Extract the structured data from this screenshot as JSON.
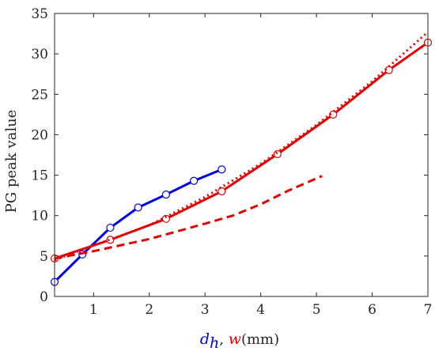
{
  "chart_data": {
    "type": "line",
    "xlim": [
      0.3,
      7
    ],
    "ylim": [
      0,
      35
    ],
    "xticks": [
      1,
      2,
      3,
      4,
      5,
      6,
      7
    ],
    "yticks": [
      0,
      5,
      10,
      15,
      20,
      25,
      30,
      35
    ],
    "xtick_labels": [
      "1",
      "2",
      "3",
      "4",
      "5",
      "6",
      "7"
    ],
    "ytick_labels": [
      "0",
      "5",
      "10",
      "15",
      "20",
      "25",
      "30",
      "35"
    ],
    "ylabel": "PG peak value",
    "xlabel": {
      "var1": "d",
      "var1_sub": "h",
      "sep": ", ",
      "var2": "w",
      "unit": "(mm)"
    },
    "grid": false,
    "box": true,
    "colors": {
      "blue": "#0000e6",
      "red": "#e60000",
      "axis": "#262626"
    },
    "series": [
      {
        "color": "blue",
        "style": "solid",
        "markers": "circle",
        "x": [
          0.3,
          0.8,
          1.3,
          1.8,
          2.3,
          2.8,
          3.3
        ],
        "y": [
          1.8,
          5.2,
          8.5,
          11.0,
          12.6,
          14.3,
          15.7
        ]
      },
      {
        "color": "red",
        "style": "solid",
        "markers": "circle",
        "x": [
          0.3,
          1.3,
          2.3,
          3.3,
          4.3,
          5.3,
          6.3,
          7.0
        ],
        "y": [
          4.7,
          7.0,
          9.6,
          13.0,
          17.6,
          22.5,
          28.0,
          31.4
        ]
      },
      {
        "color": "red",
        "style": "dotted",
        "markers": "none",
        "x": [
          0.3,
          1.0,
          2.0,
          3.0,
          4.0,
          5.0,
          6.0,
          7.0
        ],
        "y": [
          4.5,
          6.3,
          8.8,
          12.3,
          16.4,
          21.2,
          26.6,
          32.7
        ]
      },
      {
        "color": "red",
        "style": "dashed",
        "markers": "none",
        "x": [
          0.3,
          1.0,
          2.0,
          3.0,
          3.5,
          4.0,
          4.5,
          5.1
        ],
        "y": [
          4.7,
          5.6,
          7.1,
          9.0,
          10.0,
          11.4,
          13.1,
          14.9
        ]
      }
    ]
  }
}
